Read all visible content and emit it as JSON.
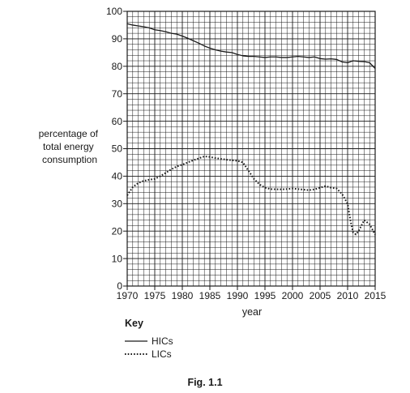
{
  "chart_data": {
    "type": "line",
    "title": "",
    "caption": "Fig. 1.1",
    "xlabel": "year",
    "ylabel": [
      "percentage of",
      "total energy",
      "consumption"
    ],
    "xlim": [
      1970,
      2015
    ],
    "ylim": [
      0,
      100
    ],
    "x_ticks": [
      1970,
      1975,
      1980,
      1985,
      1990,
      1995,
      2000,
      2005,
      2010,
      2015
    ],
    "y_ticks": [
      0,
      10,
      20,
      30,
      40,
      50,
      60,
      70,
      80,
      90,
      100
    ],
    "grid": true,
    "legend_position": "below-left",
    "key_title": "Key",
    "series": [
      {
        "name": "HICs",
        "style": "solid",
        "color": "#1a1a1a",
        "x": [
          1970,
          1971,
          1972,
          1973,
          1974,
          1975,
          1976,
          1977,
          1978,
          1979,
          1980,
          1981,
          1982,
          1983,
          1984,
          1985,
          1986,
          1987,
          1988,
          1989,
          1990,
          1991,
          1992,
          1993,
          1994,
          1995,
          1996,
          1997,
          1998,
          1999,
          2000,
          2001,
          2002,
          2003,
          2004,
          2005,
          2006,
          2007,
          2008,
          2009,
          2010,
          2011,
          2012,
          2013,
          2014,
          2015
        ],
        "values": [
          95.5,
          95,
          94.7,
          94.4,
          94,
          93.3,
          93,
          92.6,
          92,
          91.7,
          91,
          90.2,
          89.3,
          88.4,
          87.4,
          86.6,
          86,
          85.5,
          85.2,
          85,
          84.3,
          83.8,
          83.6,
          83.6,
          83.4,
          83.2,
          83.4,
          83.4,
          83.2,
          83.2,
          83.4,
          83.6,
          83.4,
          83.2,
          83.4,
          82.8,
          82.6,
          82.7,
          82.5,
          81.6,
          81.3,
          82,
          81.8,
          81.7,
          81.3,
          79.2
        ]
      },
      {
        "name": "LICs",
        "style": "dotted",
        "color": "#1a1a1a",
        "x": [
          1970,
          1971,
          1972,
          1973,
          1974,
          1975,
          1976,
          1977,
          1978,
          1979,
          1980,
          1981,
          1982,
          1983,
          1984,
          1985,
          1986,
          1987,
          1988,
          1989,
          1990,
          1991,
          1992,
          1993,
          1994,
          1995,
          1996,
          1997,
          1998,
          1999,
          2000,
          2001,
          2002,
          2003,
          2004,
          2005,
          2006,
          2007,
          2008,
          2009,
          2010,
          2010.5,
          2011,
          2011.5,
          2012,
          2013,
          2014,
          2015
        ],
        "values": [
          33,
          36,
          37.5,
          38.3,
          38.7,
          39,
          40,
          41.2,
          42.5,
          43.5,
          44.2,
          45,
          45.8,
          46.5,
          47.2,
          47,
          46.6,
          46.3,
          46,
          45.8,
          45.6,
          45,
          42,
          39,
          37,
          35.8,
          35.3,
          35.2,
          35.2,
          35.3,
          35.5,
          35.3,
          35.1,
          34.9,
          35.2,
          35.8,
          36.4,
          35.8,
          35.5,
          33.5,
          30,
          24,
          19.5,
          18.8,
          20,
          24,
          22.5,
          18.7
        ]
      }
    ]
  }
}
